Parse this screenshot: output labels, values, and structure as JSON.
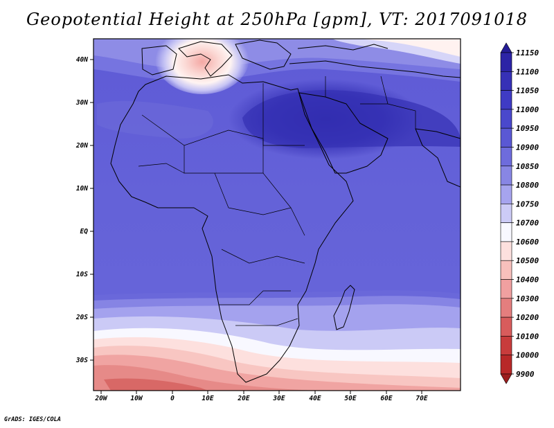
{
  "title": "Geopotential Height at 250hPa [gpm], VT: 2017091018",
  "credit": "GrADS: IGES/COLA",
  "map": {
    "lon_range": [
      -25,
      80
    ],
    "lat_range": [
      -37,
      45
    ],
    "x_ticks": [
      "20W",
      "10W",
      "0",
      "10E",
      "20E",
      "30E",
      "40E",
      "50E",
      "60E",
      "70E"
    ],
    "y_ticks": [
      "40N",
      "30N",
      "20N",
      "10N",
      "EQ",
      "10S",
      "20S",
      "30S"
    ]
  },
  "colorbar": {
    "levels": [
      "11150",
      "11100",
      "11050",
      "11000",
      "10950",
      "10900",
      "10850",
      "10800",
      "10750",
      "10700",
      "10600",
      "10500",
      "10400",
      "10300",
      "10200",
      "10100",
      "10000",
      "9900"
    ],
    "colors": [
      "#241c96",
      "#2c24a6",
      "#3630b6",
      "#3f3bc4",
      "#4a48cc",
      "#5a58d4",
      "#6e6cdc",
      "#8886e4",
      "#a6a4ee",
      "#cccbf6",
      "#f8f8ff",
      "#fde0de",
      "#f8c0bc",
      "#f0a0a0",
      "#e47e7e",
      "#d85c5c",
      "#c83c3c",
      "#b82828",
      "#9c1e1e"
    ]
  }
}
